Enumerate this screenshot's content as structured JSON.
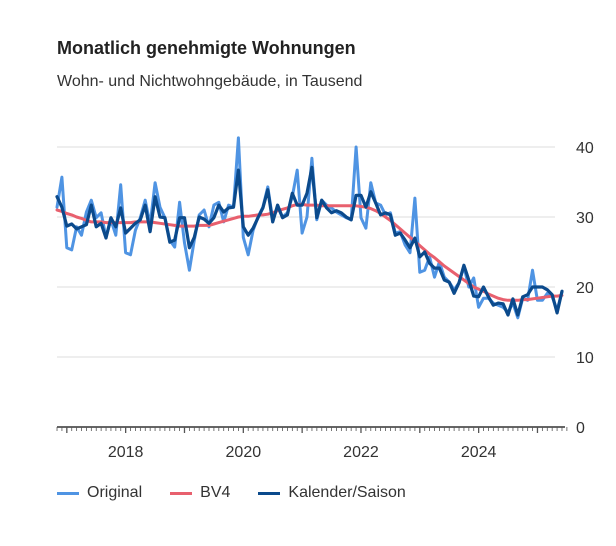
{
  "chart_data": {
    "type": "line",
    "title": "Monatlich genehmigte Wohnungen",
    "subtitle": "Wohn- und Nichtwohngebäude, in Tausend",
    "xlabel": "",
    "ylabel": "",
    "start_year_fraction": 2016.833,
    "frequency": "monthly",
    "xlim": [
      2016.833,
      2025.417
    ],
    "ylim": [
      0,
      40
    ],
    "yticks": [
      "0",
      "10",
      "20",
      "30",
      "40"
    ],
    "xticks": [
      {
        "year": 2018,
        "label": "2018"
      },
      {
        "year": 2020,
        "label": "2020"
      },
      {
        "year": 2022,
        "label": "2022"
      },
      {
        "year": 2024,
        "label": "2024"
      }
    ],
    "grid": true,
    "legend_position": "bottom-left",
    "series": [
      {
        "name": "Original",
        "color": "#4f94e3",
        "values": [
          31.4,
          35.7,
          25.6,
          25.3,
          28.6,
          27.4,
          30.7,
          32.4,
          29.9,
          30.6,
          27.1,
          29.6,
          27.4,
          34.6,
          24.9,
          24.6,
          28.1,
          29.9,
          32.4,
          28.9,
          34.9,
          31.4,
          29.9,
          26.7,
          25.7,
          32.1,
          26.3,
          22.4,
          26.7,
          30.3,
          31.0,
          28.6,
          31.7,
          32.1,
          29.3,
          31.7,
          31.4,
          41.3,
          27.1,
          24.6,
          28.1,
          30.0,
          31.4,
          34.3,
          29.6,
          31.4,
          30.0,
          30.6,
          32.9,
          36.7,
          27.7,
          30.0,
          38.4,
          29.6,
          32.4,
          31.7,
          31.3,
          30.7,
          30.3,
          29.9,
          29.6,
          40.0,
          29.9,
          28.4,
          34.9,
          32.0,
          31.7,
          30.3,
          30.6,
          27.7,
          27.9,
          26.0,
          24.9,
          32.7,
          22.1,
          22.4,
          24.3,
          21.4,
          23.6,
          21.4,
          20.7,
          19.6,
          20.6,
          22.9,
          20.0,
          21.3,
          17.1,
          18.4,
          18.4,
          17.7,
          17.4,
          17.1,
          16.4,
          17.7,
          15.6,
          18.4,
          18.1,
          22.4,
          18.1,
          18.1,
          19.1,
          18.6,
          16.7,
          19.3
        ]
      },
      {
        "name": "BV4",
        "color": "#e8606e",
        "values": [
          31.0,
          30.8,
          30.5,
          30.3,
          30.0,
          29.8,
          29.5,
          29.3,
          29.3,
          29.3,
          29.2,
          29.2,
          29.2,
          29.2,
          29.2,
          29.2,
          29.3,
          29.3,
          29.3,
          29.3,
          29.2,
          29.1,
          29.0,
          28.9,
          28.8,
          28.7,
          28.7,
          28.7,
          28.7,
          28.8,
          28.8,
          28.8,
          29.0,
          29.2,
          29.4,
          29.6,
          29.8,
          30.0,
          30.1,
          30.1,
          30.2,
          30.3,
          30.3,
          30.4,
          30.6,
          30.9,
          31.1,
          31.3,
          31.6,
          31.8,
          31.8,
          31.7,
          31.7,
          31.7,
          31.6,
          31.6,
          31.6,
          31.6,
          31.6,
          31.6,
          31.6,
          31.6,
          31.5,
          31.4,
          31.2,
          30.9,
          30.5,
          30.0,
          29.5,
          28.9,
          28.3,
          27.7,
          27.1,
          26.5,
          25.9,
          25.3,
          24.7,
          24.2,
          23.6,
          23.0,
          22.5,
          22.0,
          21.5,
          21.0,
          20.5,
          20.0,
          19.7,
          19.4,
          19.0,
          18.7,
          18.4,
          18.2,
          18.1,
          18.1,
          18.1,
          18.2,
          18.2,
          18.3,
          18.4,
          18.5,
          18.6,
          18.7,
          18.7,
          18.8
        ]
      },
      {
        "name": "Kalender/Saison",
        "color": "#0b4a8c",
        "values": [
          32.9,
          31.4,
          28.7,
          29.0,
          28.3,
          28.6,
          28.9,
          31.7,
          28.6,
          29.1,
          27.0,
          29.9,
          28.6,
          31.3,
          27.7,
          28.4,
          29.1,
          29.6,
          31.7,
          27.9,
          32.9,
          30.0,
          29.9,
          26.4,
          26.7,
          29.9,
          29.9,
          25.6,
          27.1,
          30.0,
          29.7,
          29.1,
          29.9,
          31.7,
          30.7,
          31.3,
          31.4,
          36.7,
          28.6,
          27.4,
          28.4,
          29.9,
          31.3,
          33.9,
          29.3,
          31.7,
          29.9,
          30.3,
          33.4,
          31.7,
          31.7,
          33.4,
          37.1,
          29.9,
          32.4,
          31.3,
          30.6,
          30.9,
          30.6,
          30.0,
          29.6,
          33.1,
          33.1,
          31.4,
          33.6,
          32.0,
          30.3,
          30.6,
          30.3,
          27.4,
          27.7,
          26.7,
          25.6,
          27.0,
          24.3,
          25.0,
          23.4,
          22.7,
          22.7,
          21.0,
          20.7,
          19.1,
          20.6,
          23.1,
          21.0,
          18.7,
          18.6,
          20.0,
          18.6,
          17.4,
          17.7,
          17.6,
          16.0,
          18.3,
          16.0,
          18.6,
          18.9,
          20.0,
          20.0,
          20.0,
          19.6,
          18.9,
          16.3,
          19.4
        ]
      }
    ]
  }
}
